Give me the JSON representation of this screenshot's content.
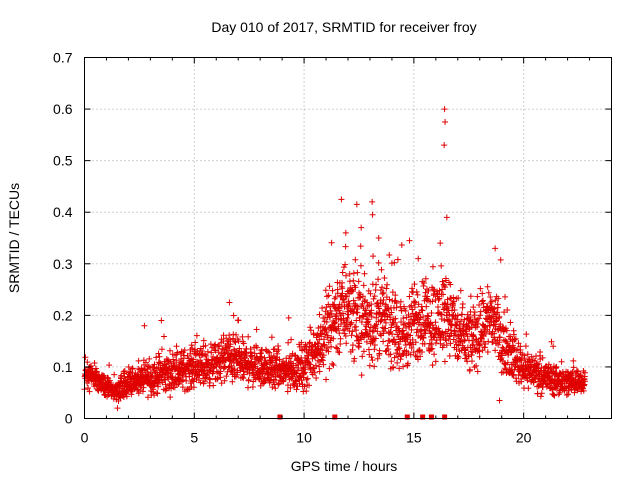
{
  "chart_data": {
    "type": "scatter",
    "title": "Day 010 of 2017, SRMTID for receiver froy",
    "xlabel": "GPS time / hours",
    "ylabel": "SRMTID / TECUs",
    "xlim": [
      0,
      24
    ],
    "ylim": [
      0,
      0.7
    ],
    "x_ticks": [
      "0",
      "5",
      "10",
      "15",
      "20"
    ],
    "y_ticks": [
      "0",
      "0.1",
      "0.2",
      "0.3",
      "0.4",
      "0.5",
      "0.6",
      "0.7"
    ],
    "grid": true,
    "marker": "+",
    "series_color": "#e00000",
    "envelope": {
      "hours": [
        0,
        0.5,
        1,
        1.5,
        2,
        3,
        4,
        5,
        6,
        6.5,
        7,
        8,
        9,
        10,
        10.5,
        11,
        11.5,
        12,
        12.5,
        13,
        13.5,
        14,
        14.5,
        15,
        15.5,
        16,
        16.5,
        17,
        17.5,
        18,
        18.5,
        19,
        19.5,
        20,
        20.5,
        21,
        22,
        22.8
      ],
      "typical_srmtid": [
        0.085,
        0.08,
        0.06,
        0.055,
        0.07,
        0.08,
        0.09,
        0.1,
        0.105,
        0.12,
        0.11,
        0.1,
        0.09,
        0.1,
        0.13,
        0.17,
        0.2,
        0.22,
        0.2,
        0.18,
        0.2,
        0.17,
        0.16,
        0.18,
        0.2,
        0.19,
        0.21,
        0.16,
        0.15,
        0.17,
        0.2,
        0.15,
        0.12,
        0.1,
        0.09,
        0.08,
        0.07,
        0.075
      ],
      "spread": [
        0.025,
        0.02,
        0.02,
        0.02,
        0.025,
        0.03,
        0.035,
        0.035,
        0.035,
        0.045,
        0.04,
        0.035,
        0.035,
        0.04,
        0.05,
        0.07,
        0.08,
        0.08,
        0.08,
        0.07,
        0.07,
        0.06,
        0.06,
        0.07,
        0.07,
        0.07,
        0.08,
        0.06,
        0.06,
        0.06,
        0.07,
        0.05,
        0.04,
        0.035,
        0.03,
        0.03,
        0.025,
        0.02
      ]
    },
    "notable_points": [
      {
        "hour": 16.4,
        "srmtid": 0.6
      },
      {
        "hour": 16.42,
        "srmtid": 0.575
      },
      {
        "hour": 16.38,
        "srmtid": 0.53
      },
      {
        "hour": 11.7,
        "srmtid": 0.425
      },
      {
        "hour": 13.1,
        "srmtid": 0.42
      },
      {
        "hour": 13.12,
        "srmtid": 0.395
      },
      {
        "hour": 16.5,
        "srmtid": 0.39
      },
      {
        "hour": 12.6,
        "srmtid": 0.37
      },
      {
        "hour": 11.9,
        "srmtid": 0.36
      },
      {
        "hour": 13.4,
        "srmtid": 0.35
      },
      {
        "hour": 14.8,
        "srmtid": 0.345
      },
      {
        "hour": 16.2,
        "srmtid": 0.34
      },
      {
        "hour": 18.7,
        "srmtid": 0.33
      },
      {
        "hour": 15.2,
        "srmtid": 0.31
      },
      {
        "hour": 3.5,
        "srmtid": 0.19
      },
      {
        "hour": 6.6,
        "srmtid": 0.225
      },
      {
        "hour": 9.3,
        "srmtid": 0.195
      },
      {
        "hour": 18.9,
        "srmtid": 0.035
      },
      {
        "hour": 1.5,
        "srmtid": 0.02
      }
    ],
    "gap_markers_hours": [
      8.9,
      11.4,
      14.7,
      15.4,
      15.8,
      16.4
    ]
  }
}
